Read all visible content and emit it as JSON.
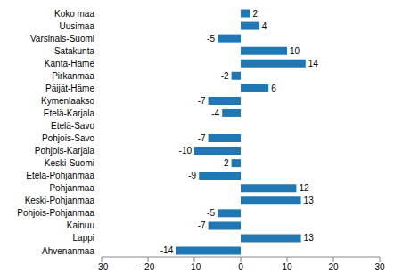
{
  "chart_data": {
    "type": "bar",
    "orientation": "horizontal",
    "categories": [
      "Koko maa",
      "Uusimaa",
      "Varsinais-Suomi",
      "Satakunta",
      "Kanta-Häme",
      "Pirkanmaa",
      "Päijät-Häme",
      "Kymenlaakso",
      "Etelä-Karjala",
      "Etelä-Savo",
      "Pohjois-Savo",
      "Pohjois-Karjala",
      "Keski-Suomi",
      "Etelä-Pohjanmaa",
      "Pohjanmaa",
      "Keski-Pohjanmaa",
      "Pohjois-Pohjanmaa",
      "Kainuu",
      "Lappi",
      "Ahvenanmaa"
    ],
    "values": [
      2,
      4,
      -5,
      10,
      14,
      -2,
      6,
      -7,
      -4,
      0,
      -7,
      -10,
      -2,
      -9,
      12,
      13,
      -5,
      -7,
      13,
      -14
    ],
    "color": "#1f77b4",
    "xlim": [
      -30,
      30
    ],
    "xticks": [
      -30,
      -20,
      -10,
      0,
      10,
      20,
      30
    ],
    "grid": false,
    "data_labels": true
  }
}
